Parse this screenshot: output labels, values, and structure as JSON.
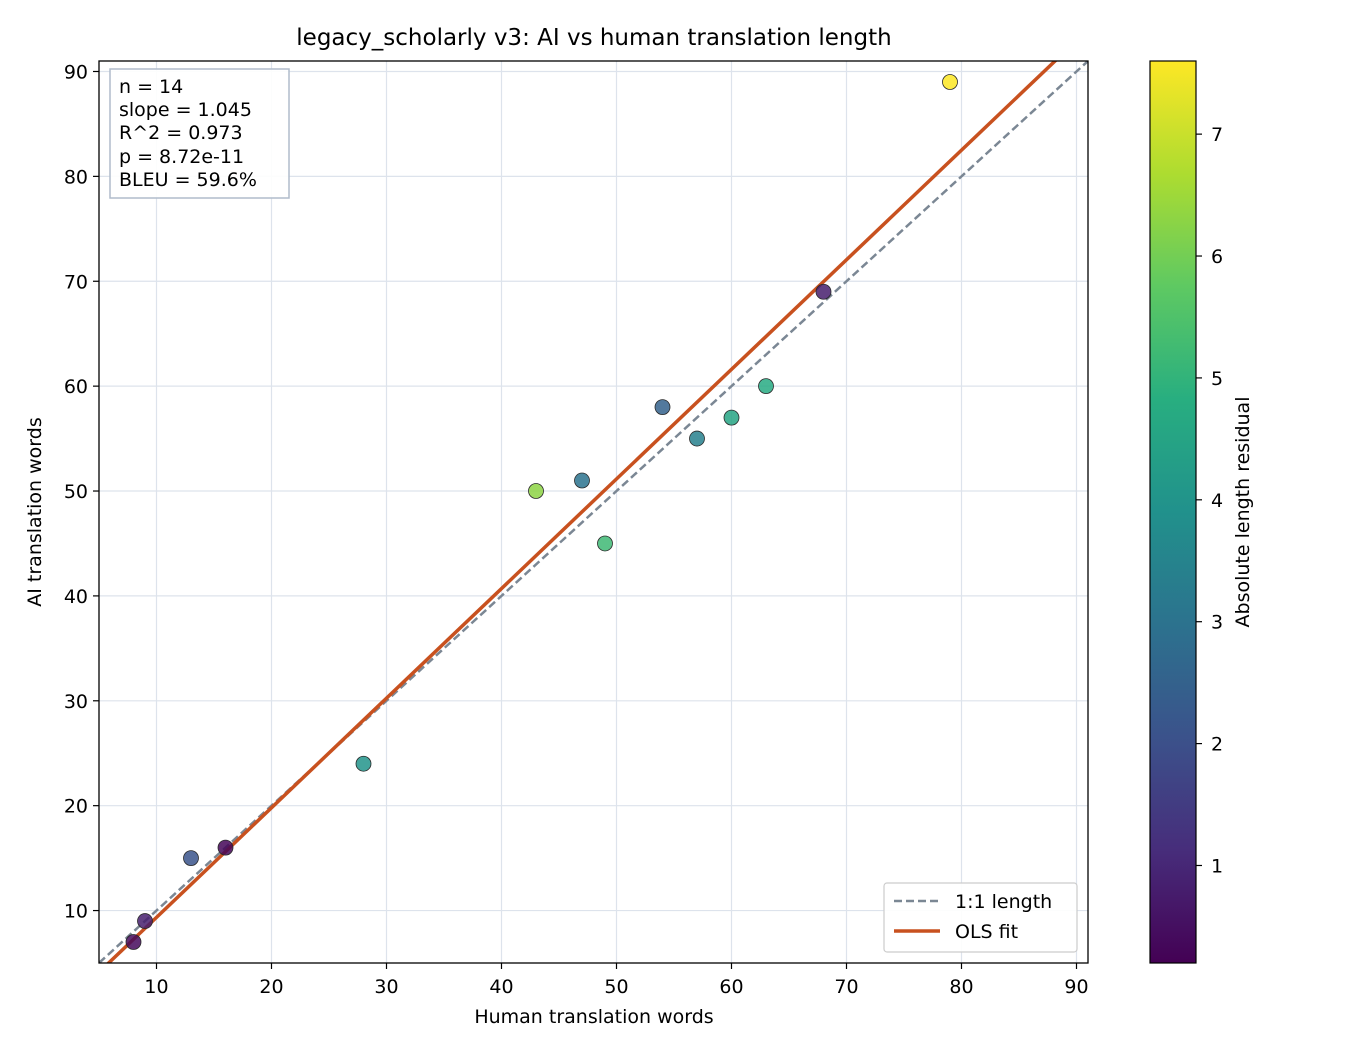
{
  "chart_data": {
    "type": "scatter",
    "title": "legacy_scholarly v3: AI vs human translation length",
    "xlabel": "Human translation words",
    "ylabel": "AI translation words",
    "xlim": [
      5,
      91
    ],
    "ylim": [
      5,
      91
    ],
    "x_ticks": [
      10,
      20,
      30,
      40,
      50,
      60,
      70,
      80,
      90
    ],
    "y_ticks": [
      10,
      20,
      30,
      40,
      50,
      60,
      70,
      80,
      90
    ],
    "grid": true,
    "points": [
      {
        "x": 8,
        "y": 7,
        "residual": 0.4
      },
      {
        "x": 9,
        "y": 9,
        "residual": 0.8
      },
      {
        "x": 13,
        "y": 15,
        "residual": 2.1
      },
      {
        "x": 16,
        "y": 16,
        "residual": 0.3
      },
      {
        "x": 28,
        "y": 24,
        "residual": 4.0
      },
      {
        "x": 43,
        "y": 50,
        "residual": 6.3
      },
      {
        "x": 47,
        "y": 51,
        "residual": 3.0
      },
      {
        "x": 49,
        "y": 45,
        "residual": 5.2
      },
      {
        "x": 54,
        "y": 58,
        "residual": 2.5
      },
      {
        "x": 57,
        "y": 55,
        "residual": 3.4
      },
      {
        "x": 60,
        "y": 57,
        "residual": 4.5
      },
      {
        "x": 63,
        "y": 60,
        "residual": 4.7
      },
      {
        "x": 68,
        "y": 69,
        "residual": 0.8
      },
      {
        "x": 79,
        "y": 89,
        "residual": 7.6
      }
    ],
    "reference_line": {
      "label": "1:1 length",
      "slope": 1,
      "intercept": 0,
      "color": "#7b8794",
      "style": "dashed"
    },
    "fit_line": {
      "label": "OLS fit",
      "slope": 1.045,
      "intercept": -1.1,
      "color": "#c8511f"
    },
    "stats": [
      "n = 14",
      "slope = 1.045",
      "R^2 = 0.973",
      "p = 8.72e-11",
      "BLEU = 59.6%"
    ],
    "legend_position": "bottom-right",
    "colorbar": {
      "label": "Absolute length residual",
      "colormap": "viridis",
      "range": [
        0.2,
        7.6
      ],
      "ticks": [
        1,
        2,
        3,
        4,
        5,
        6,
        7
      ]
    }
  }
}
